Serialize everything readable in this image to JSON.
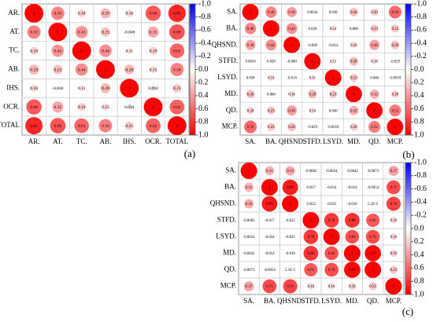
{
  "chart_data": [
    {
      "type": "heatmap",
      "panel_label": "(a)",
      "labels_x": [
        "AR.",
        "AT.",
        "TC.",
        "AB.",
        "IHS.",
        "OCR.",
        "TOTAL"
      ],
      "labels_y": [
        "AR.",
        "AT.",
        "TC.",
        "AB.",
        "IHS.",
        "OCR.",
        "TOTAL"
      ],
      "colorbar": {
        "min": -1.0,
        "max": 1.0,
        "ticks": [
          "-1.0",
          "-0.8",
          "-0.6",
          "-0.4",
          "-0.2",
          "0.0",
          "0.2",
          "0.4",
          "0.6",
          "0.8",
          "1.0"
        ]
      },
      "matrix": [
        [
          1,
          0.5,
          0.18,
          0.29,
          0.16,
          0.66,
          0.85
        ],
        [
          0.5,
          1,
          0.43,
          0.25,
          -0.048,
          0.35,
          0.68
        ],
        [
          0.18,
          0.43,
          1,
          0.44,
          0.11,
          0.19,
          0.61
        ],
        [
          0.29,
          0.25,
          0.44,
          1,
          0.28,
          0.15,
          0.5
        ],
        [
          0.16,
          -0.048,
          0.11,
          0.28,
          1,
          0.094,
          0.21
        ],
        [
          0.66,
          0.35,
          0.19,
          0.15,
          0.094,
          1,
          0.62
        ],
        [
          0.85,
          0.68,
          0.61,
          0.5,
          0.21,
          0.62,
          1
        ]
      ],
      "cell_labels": [
        [
          "1",
          "0.50",
          "0.18",
          "0.29",
          "0.16",
          "0.66",
          "0.85"
        ],
        [
          "0.50",
          "1",
          "0.43",
          "0.25",
          "-0.048",
          "0.35",
          "0.68"
        ],
        [
          "0.18",
          "0.43",
          "1",
          "0.44",
          "0.11",
          "0.19",
          "0.61"
        ],
        [
          "0.29",
          "0.25",
          "0.44",
          "1",
          "0.28",
          "0.15",
          "0.50"
        ],
        [
          "0.16",
          "-0.048",
          "0.11",
          "0.28",
          "1",
          "0.094",
          "0.21"
        ],
        [
          "0.66",
          "0.35",
          "0.19",
          "0.15",
          "0.094",
          "1",
          "0.62"
        ],
        [
          "0.85",
          "0.68",
          "0.61",
          "0.50",
          "0.21",
          "0.62",
          "1"
        ]
      ]
    },
    {
      "type": "heatmap",
      "panel_label": "(b)",
      "labels_x": [
        "SA.",
        "BA.",
        "QHSND.",
        "STFD.",
        "LSYD.",
        "MD.",
        "QD.",
        "MCP."
      ],
      "labels_y": [
        "SA.",
        "BA.",
        "QHSND.",
        "STFD.",
        "LSYD.",
        "MD.",
        "QD.",
        "MCP."
      ],
      "colorbar": {
        "min": -1.0,
        "max": 1.0,
        "ticks": [
          "-1.0",
          "-0.8",
          "-0.6",
          "-0.4",
          "-0.2",
          "0.0",
          "0.2",
          "0.4",
          "0.6",
          "0.8",
          "1.0"
        ]
      },
      "matrix": [
        [
          1,
          0.48,
          0.38,
          0.0034,
          0.038,
          0.26,
          0.2,
          0.59
        ],
        [
          0.48,
          1,
          0.44,
          0.02,
          0.14,
          0.06,
          0.23,
          0.23
        ],
        [
          0.38,
          0.44,
          1,
          -0.04,
          -0.014,
          0.16,
          0.38,
          0.26
        ],
        [
          0.0034,
          0.02,
          -0.04,
          1,
          0.11,
          0.28,
          0.14,
          -0.029
        ],
        [
          0.038,
          0.14,
          -0.014,
          0.11,
          1,
          0.23,
          0.046,
          -0.0018
        ],
        [
          0.26,
          0.06,
          0.16,
          0.28,
          0.23,
          1,
          0.32,
          0.2
        ],
        [
          0.2,
          0.23,
          0.38,
          0.14,
          0.046,
          0.32,
          1,
          0.52
        ],
        [
          0.59,
          0.23,
          0.26,
          -0.029,
          -0.0018,
          0.2,
          0.52,
          1
        ]
      ],
      "cell_labels": [
        [
          "1",
          "0.48",
          "0.38",
          "0.0034",
          "0.038",
          "0.26",
          "0.20",
          "0.59"
        ],
        [
          "0.48",
          "1",
          "0.44",
          "0.020",
          "0.14",
          "0.060",
          "0.23",
          "0.23"
        ],
        [
          "0.38",
          "0.44",
          "1",
          "-0.040",
          "-0.014",
          "0.16",
          "0.38",
          "0.26"
        ],
        [
          "0.0034",
          "0.020",
          "-0.040",
          "1",
          "0.11",
          "0.28",
          "0.14",
          "-0.029"
        ],
        [
          "0.038",
          "0.14",
          "-0.014",
          "0.11",
          "1",
          "0.23",
          "0.046",
          "-0.0018"
        ],
        [
          "0.26",
          "0.060",
          "0.16",
          "0.28",
          "0.23",
          "1",
          "0.32",
          "0.20"
        ],
        [
          "0.20",
          "0.23",
          "0.38",
          "0.14",
          "0.046",
          "0.32",
          "1",
          "0.52"
        ],
        [
          "0.59",
          "0.23",
          "0.26",
          "-0.029",
          "-0.0018",
          "0.20",
          "0.52",
          "1"
        ]
      ]
    },
    {
      "type": "heatmap",
      "panel_label": "(c)",
      "labels_x": [
        "SA.",
        "BA.",
        "QHSND.",
        "STFD.",
        "LSYD.",
        "MD.",
        "QD.",
        "MCP."
      ],
      "labels_y": [
        "SA.",
        "BA.",
        "QHSND.",
        "STFD.",
        "LSYD.",
        "MD.",
        "QD.",
        "MCP."
      ],
      "colorbar": {
        "min": -1.0,
        "max": 1.0,
        "ticks": [
          "-1.0",
          "-0.8",
          "-0.6",
          "-0.4",
          "-0.2",
          "0.0",
          "0.2",
          "0.4",
          "0.6",
          "0.8",
          "1.0"
        ]
      },
      "matrix": [
        [
          1,
          0.31,
          0.33,
          -0.0082,
          -0.0024,
          -0.0042,
          -0.0073,
          0.37
        ],
        [
          0.31,
          1,
          0.89,
          -0.017,
          -0.034,
          -0.014,
          -0.0054,
          0.71
        ],
        [
          0.33,
          0.89,
          1,
          -0.022,
          -0.035,
          -0.016,
          5.1e-05,
          0.74
        ],
        [
          -0.0082,
          -0.017,
          -0.022,
          1,
          0.78,
          0.8,
          0.65,
          0.16
        ],
        [
          -0.0024,
          -0.034,
          -0.035,
          0.78,
          1,
          0.69,
          0.7,
          0.16
        ],
        [
          -0.0042,
          -0.014,
          -0.016,
          0.8,
          0.69,
          1,
          0.97,
          0.19
        ],
        [
          -0.0073,
          -0.0054,
          5.1e-05,
          0.65,
          0.7,
          0.97,
          1,
          0.23
        ],
        [
          0.37,
          0.71,
          0.74,
          0.16,
          0.16,
          0.19,
          0.23,
          1
        ]
      ],
      "cell_labels": [
        [
          "1",
          "0.31",
          "0.33",
          "-0.0082",
          "-0.0024",
          "-0.0042",
          "-0.0073",
          "0.37"
        ],
        [
          "0.31",
          "1",
          "0.89",
          "-0.017",
          "-0.034",
          "-0.014",
          "-0.0054",
          "0.71"
        ],
        [
          "0.33",
          "0.89",
          "1",
          "-0.022",
          "-0.035",
          "-0.016",
          "5.1E-5",
          "0.74"
        ],
        [
          "-0.0082",
          "-0.017",
          "-0.022",
          "1",
          "0.78",
          "0.80",
          "0.65",
          "0.16"
        ],
        [
          "-0.0024",
          "-0.034",
          "-0.035",
          "0.78",
          "1",
          "0.69",
          "0.70",
          "0.16"
        ],
        [
          "-0.0042",
          "-0.014",
          "-0.016",
          "0.80",
          "0.69",
          "1",
          "0.97",
          "0.19"
        ],
        [
          "-0.0073",
          "-0.0054",
          "5.1E-5",
          "0.65",
          "0.70",
          "0.97",
          "1",
          "0.23"
        ],
        [
          "0.37",
          "0.71",
          "0.74",
          "0.16",
          "0.16",
          "0.19",
          "0.23",
          "1"
        ]
      ]
    }
  ],
  "colors": {
    "positive": "#ff0000",
    "negative": "#0000ff",
    "grid": "#c8c8c8",
    "text": "#000000"
  }
}
